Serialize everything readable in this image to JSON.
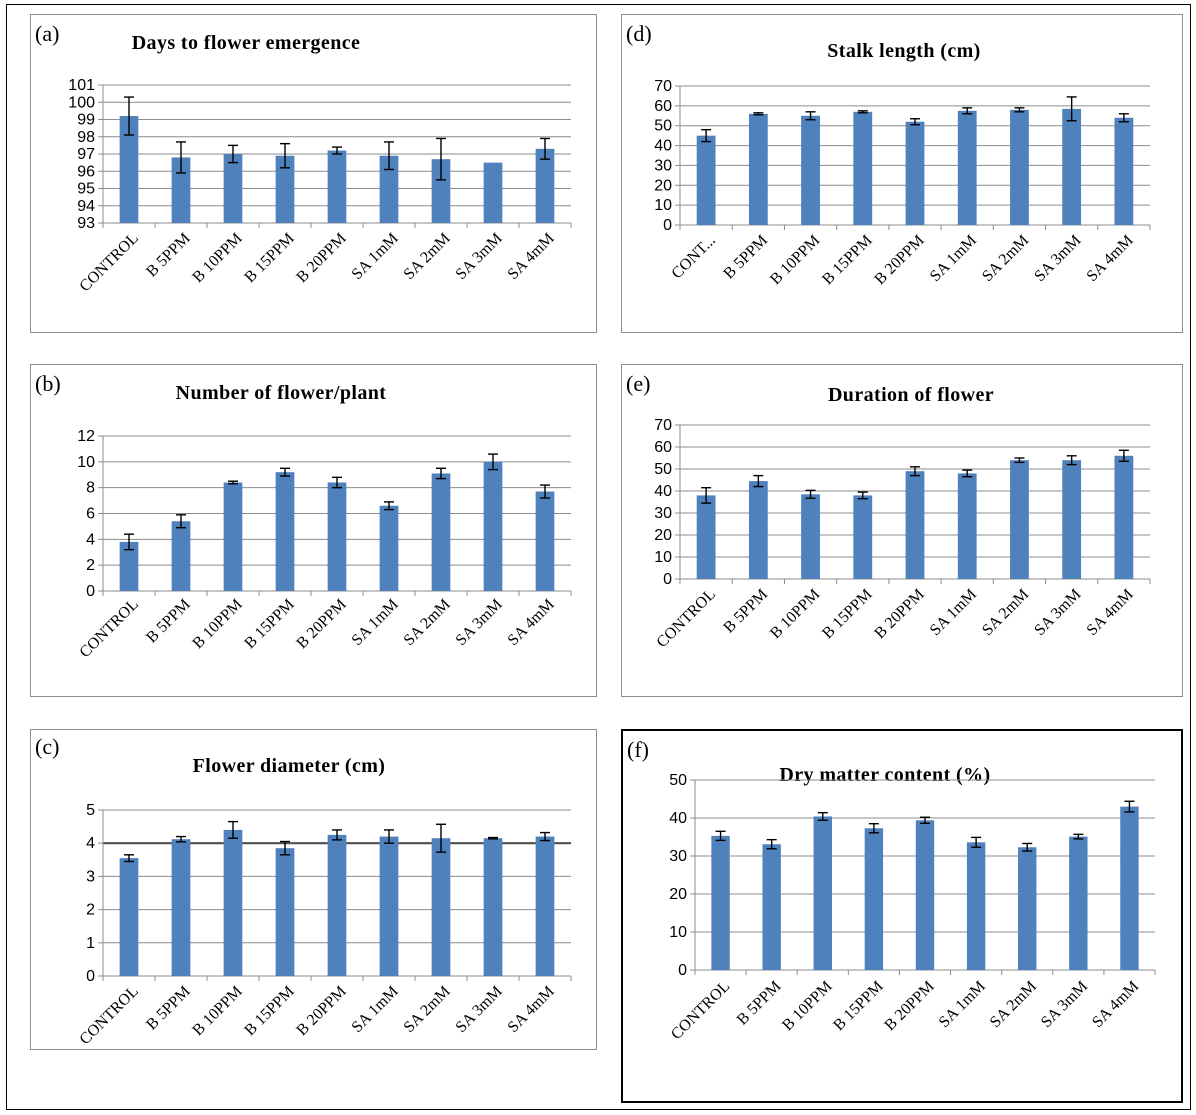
{
  "figure": {
    "panel_labels": [
      "(a)",
      "(b)",
      "(c)",
      "(d)",
      "(e)",
      "(f)"
    ]
  },
  "colors": {
    "bar": "#4f81bd",
    "gridline": "#8c8c8c",
    "error_bar": "#000000"
  },
  "chart_data": [
    {
      "type": "bar",
      "panel": "(a)",
      "title": "Days to flower emergence",
      "categories": [
        "CONTROL",
        "B 5PPM",
        "B 10PPM",
        "B 15PPM",
        "B 20PPM",
        "SA 1mM",
        "SA 2mM",
        "SA 3mM",
        "SA 4mM"
      ],
      "values": [
        99.2,
        96.8,
        97.0,
        96.9,
        97.2,
        96.9,
        96.7,
        96.5,
        97.3
      ],
      "errors": [
        1.1,
        0.9,
        0.5,
        0.7,
        0.2,
        0.8,
        1.2,
        0.0,
        0.6
      ],
      "ylim": [
        93,
        101
      ],
      "yticks": [
        93,
        94,
        95,
        96,
        97,
        98,
        99,
        100,
        101
      ],
      "grid": true,
      "legend": "none"
    },
    {
      "type": "bar",
      "panel": "(b)",
      "title": "Number of flower/plant",
      "categories": [
        "CONTROL",
        "B 5PPM",
        "B 10PPM",
        "B 15PPM",
        "B 20PPM",
        "SA 1mM",
        "SA 2mM",
        "SA 3mM",
        "SA 4mM"
      ],
      "values": [
        3.8,
        5.4,
        8.4,
        9.2,
        8.4,
        6.6,
        9.1,
        10.0,
        7.7
      ],
      "errors": [
        0.6,
        0.5,
        0.1,
        0.3,
        0.4,
        0.3,
        0.4,
        0.6,
        0.5
      ],
      "ylim": [
        0,
        12
      ],
      "yticks": [
        0,
        2,
        4,
        6,
        8,
        10,
        12
      ],
      "grid": true,
      "legend": "none"
    },
    {
      "type": "bar",
      "panel": "(c)",
      "title": "Flower diameter (cm)",
      "categories": [
        "CONTROL",
        "B 5PPM",
        "B 10PPM",
        "B 15PPM",
        "B 20PPM",
        "SA 1mM",
        "SA 2mM",
        "SA 3mM",
        "SA 4mM"
      ],
      "values": [
        3.55,
        4.12,
        4.4,
        3.85,
        4.25,
        4.2,
        4.15,
        4.15,
        4.2
      ],
      "errors": [
        0.1,
        0.08,
        0.25,
        0.2,
        0.15,
        0.2,
        0.42,
        0.02,
        0.12
      ],
      "ylim": [
        0,
        5
      ],
      "yticks": [
        0,
        1,
        2,
        3,
        4,
        5
      ],
      "grid": true,
      "legend": "none"
    },
    {
      "type": "bar",
      "panel": "(d)",
      "title": "Stalk length (cm)",
      "categories": [
        "CONT...",
        "B 5PPM",
        "B 10PPM",
        "B 15PPM",
        "B 20PPM",
        "SA 1mM",
        "SA 2mM",
        "SA 3mM",
        "SA 4mM"
      ],
      "values": [
        45,
        56,
        55,
        57,
        52,
        57.5,
        58,
        58.5,
        54
      ],
      "errors": [
        3,
        0.5,
        2,
        0.5,
        1.5,
        1.5,
        1,
        6,
        2
      ],
      "ylim": [
        0,
        70
      ],
      "yticks": [
        0,
        10,
        20,
        30,
        40,
        50,
        60,
        70
      ],
      "grid": true,
      "legend": "none"
    },
    {
      "type": "bar",
      "panel": "(e)",
      "title": "Duration of flower",
      "categories": [
        "CONTROL",
        "B 5PPM",
        "B 10PPM",
        "B 15PPM",
        "B 20PPM",
        "SA 1mM",
        "SA 2mM",
        "SA 3mM",
        "SA 4mM"
      ],
      "values": [
        38,
        44.5,
        38.5,
        38,
        49,
        48,
        54,
        54,
        56
      ],
      "errors": [
        3.5,
        2.5,
        1.8,
        1.5,
        2,
        1.5,
        1,
        2,
        2.5
      ],
      "ylim": [
        0,
        70
      ],
      "yticks": [
        0,
        10,
        20,
        30,
        40,
        50,
        60,
        70
      ],
      "grid": true,
      "legend": "none"
    },
    {
      "type": "bar",
      "panel": "(f)",
      "title": "Dry matter content (%)",
      "categories": [
        "CONTROL",
        "B 5PPM",
        "B 10PPM",
        "B 15PPM",
        "B 20PPM",
        "SA 1mM",
        "SA 2mM",
        "SA 3mM",
        "SA 4mM"
      ],
      "values": [
        35.3,
        33.1,
        40.4,
        37.3,
        39.4,
        33.6,
        32.3,
        35.1,
        43
      ],
      "errors": [
        1.2,
        1.2,
        1,
        1.2,
        0.8,
        1.3,
        1,
        0.6,
        1.4
      ],
      "ylim": [
        0,
        50
      ],
      "yticks": [
        0,
        10,
        20,
        30,
        40,
        50
      ],
      "grid": true,
      "legend": "none"
    }
  ]
}
